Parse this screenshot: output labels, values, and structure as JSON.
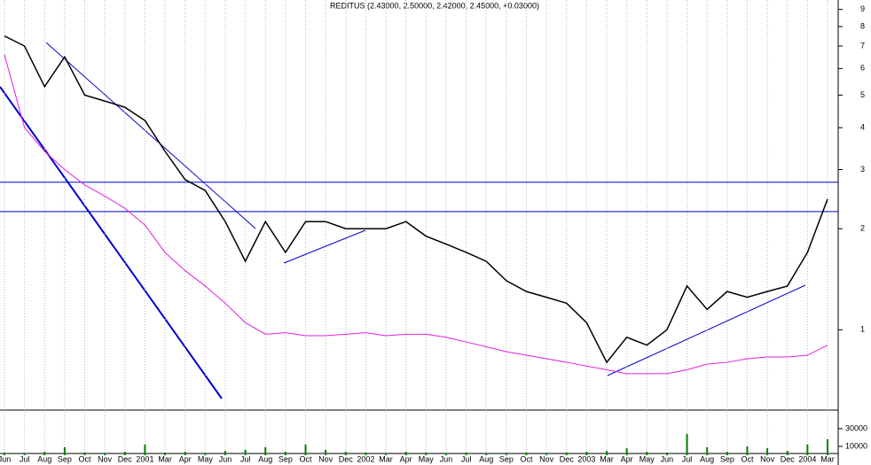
{
  "chart_data": [
    {
      "type": "line",
      "title": "REDITUS (2.43000, 2.50000, 2.42000, 2.45000, +0.03000)",
      "categories": [
        "Jun",
        "Jul",
        "Aug",
        "Sep",
        "Oct",
        "Nov",
        "Dec",
        "2001",
        "Mar",
        "Apr",
        "May",
        "Jun",
        "Jul",
        "Aug",
        "Sep",
        "Oct",
        "Nov",
        "Dec",
        "2002",
        "Mar",
        "Apr",
        "May",
        "Jun",
        "Jul",
        "Aug",
        "Sep",
        "Oct",
        "Nov",
        "Dec",
        "2003",
        "Mar",
        "Apr",
        "May",
        "Jun",
        "Jul",
        "Aug",
        "Sep",
        "Oct",
        "Nov",
        "Dec",
        "2004",
        "Mar"
      ],
      "series": [
        {
          "name": "Close",
          "color": "#000000",
          "values": [
            7.5,
            7,
            5.3,
            6.5,
            5,
            4.8,
            4.6,
            4.2,
            3.4,
            2.8,
            2.6,
            2.1,
            1.6,
            2.1,
            1.7,
            2.1,
            2.1,
            2.0,
            2.0,
            2.0,
            2.1,
            1.9,
            1.8,
            1.7,
            1.6,
            1.4,
            1.3,
            1.25,
            1.2,
            1.05,
            0.8,
            0.95,
            0.9,
            1.0,
            1.35,
            1.15,
            1.3,
            1.25,
            1.3,
            1.35,
            1.7,
            2.45
          ]
        },
        {
          "name": "Moving average",
          "color": "#e020e0",
          "values": [
            6.6,
            4.0,
            3.4,
            3.0,
            2.7,
            2.5,
            2.3,
            2.05,
            1.7,
            1.5,
            1.35,
            1.2,
            1.05,
            0.97,
            0.98,
            0.96,
            0.96,
            0.97,
            0.98,
            0.96,
            0.97,
            0.97,
            0.95,
            0.92,
            0.89,
            0.86,
            0.84,
            0.82,
            0.8,
            0.78,
            0.76,
            0.74,
            0.74,
            0.74,
            0.76,
            0.79,
            0.8,
            0.82,
            0.83,
            0.83,
            0.84,
            0.9
          ]
        }
      ],
      "log_scale": true,
      "ylim": [
        0.58,
        9.6
      ],
      "yticks": [
        1,
        2,
        3,
        4,
        5,
        6,
        7,
        8,
        9
      ],
      "reference_lines": [
        2.25,
        2.75
      ],
      "reference_color": "#0000cc",
      "grid": true
    },
    {
      "type": "bar",
      "values": [
        3000,
        2000,
        4000,
        9000,
        3000,
        2000,
        4000,
        12000,
        3000,
        4000,
        2000,
        5000,
        6000,
        9000,
        4000,
        12000,
        6000,
        4000,
        3000,
        2000,
        4000,
        3000,
        2000,
        3000,
        2000,
        2000,
        3000,
        2000,
        3000,
        4000,
        5000,
        8000,
        4000,
        3000,
        24000,
        9000,
        4000,
        10000,
        8000,
        5000,
        12000,
        18000
      ],
      "color": "#008000",
      "ylim": [
        0,
        50000
      ],
      "yticks": [
        10000,
        30000
      ]
    }
  ]
}
